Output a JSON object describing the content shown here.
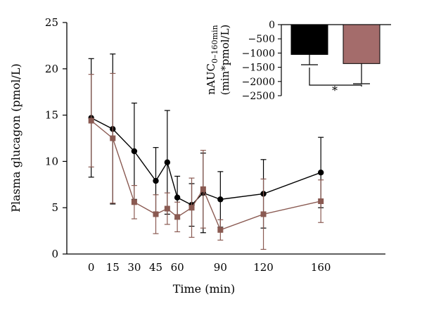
{
  "chart_data": [
    {
      "type": "line",
      "title": "",
      "xlabel": "Time (min)",
      "ylabel": "Plasma glucagon (pmol/L)",
      "xlim": [
        -17,
        205
      ],
      "ylim": [
        0,
        25
      ],
      "x_ticks": [
        0,
        15,
        30,
        45,
        60,
        90,
        120,
        160
      ],
      "y_ticks": [
        0,
        5,
        10,
        15,
        20,
        25
      ],
      "grid": false,
      "legend": "none",
      "series": [
        {
          "marker": "circle",
          "color": "#000000",
          "x": [
            0,
            15,
            30,
            45,
            53,
            60,
            70,
            78,
            90,
            120,
            160
          ],
          "y": [
            14.7,
            13.5,
            11.1,
            7.9,
            9.9,
            6.1,
            5.3,
            6.6,
            5.9,
            6.5,
            8.8
          ],
          "err": [
            6.4,
            8.1,
            5.2,
            3.6,
            5.6,
            2.3,
            2.3,
            4.3,
            3.0,
            3.7,
            3.8
          ]
        },
        {
          "marker": "square",
          "color": "#8a5a52",
          "x": [
            0,
            15,
            30,
            45,
            53,
            60,
            70,
            78,
            90,
            120,
            160
          ],
          "y": [
            14.4,
            12.5,
            5.6,
            4.3,
            4.9,
            4.0,
            5.0,
            7.0,
            2.6,
            4.3,
            5.7
          ],
          "err": [
            5.0,
            7.0,
            1.8,
            2.1,
            1.7,
            1.6,
            3.2,
            4.2,
            1.1,
            3.8,
            2.3
          ]
        }
      ]
    },
    {
      "type": "bar",
      "ylabel_main": "nAUC",
      "ylabel_sub": "0–160min",
      "ylabel_unit": "(min*pmol/L)",
      "ylim": [
        -2500,
        0
      ],
      "y_ticks": [
        0,
        -500,
        -1000,
        -1500,
        -2000,
        -2500
      ],
      "y_tick_labels": [
        "0",
        "−500",
        "−1000",
        "−1500",
        "−2000",
        "−2500"
      ],
      "categories": [
        "",
        ""
      ],
      "values": [
        -1050,
        -1370
      ],
      "errors": [
        360,
        710
      ],
      "colors": [
        "#000000",
        "#a46c6b"
      ],
      "annotation": "*"
    }
  ]
}
